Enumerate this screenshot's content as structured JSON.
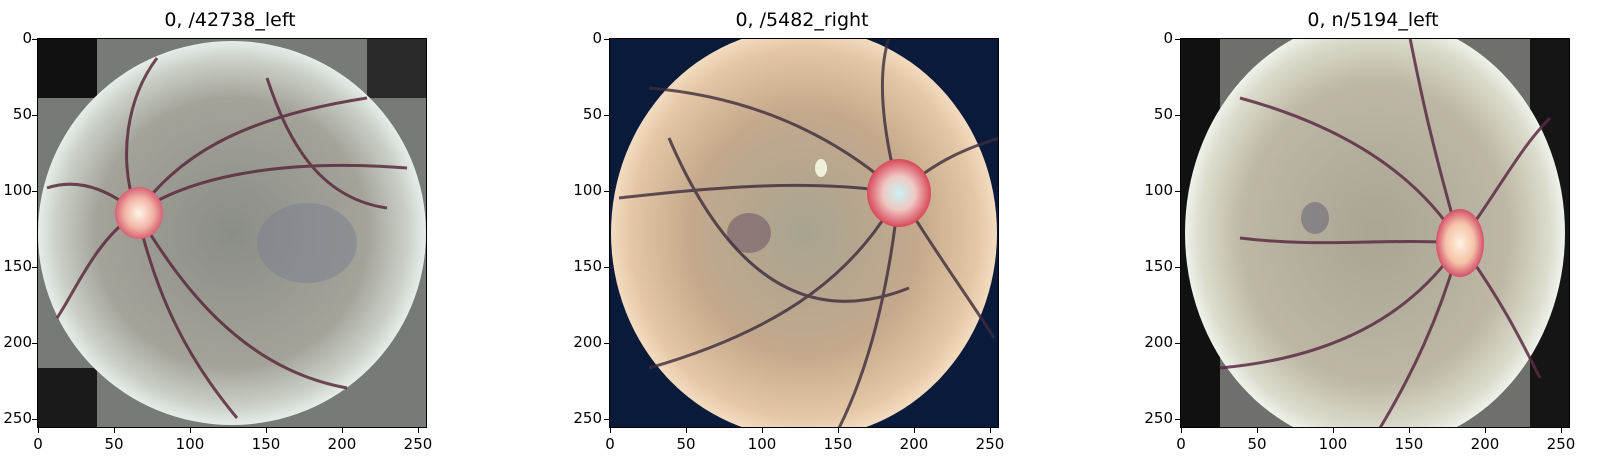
{
  "figure": {
    "panels": [
      {
        "title": "0, /42738_left",
        "xticks": [
          "0",
          "50",
          "100",
          "150",
          "200",
          "250"
        ],
        "yticks": [
          "0",
          "50",
          "100",
          "150",
          "200",
          "250"
        ]
      },
      {
        "title": "0, /5482_right",
        "xticks": [
          "0",
          "50",
          "100",
          "150",
          "200",
          "250"
        ],
        "yticks": [
          "0",
          "50",
          "100",
          "150",
          "200",
          "250"
        ]
      },
      {
        "title": "0, n/5194_left",
        "xticks": [
          "0",
          "50",
          "100",
          "150",
          "200",
          "250"
        ],
        "yticks": [
          "0",
          "50",
          "100",
          "150",
          "200",
          "250"
        ]
      }
    ]
  }
}
